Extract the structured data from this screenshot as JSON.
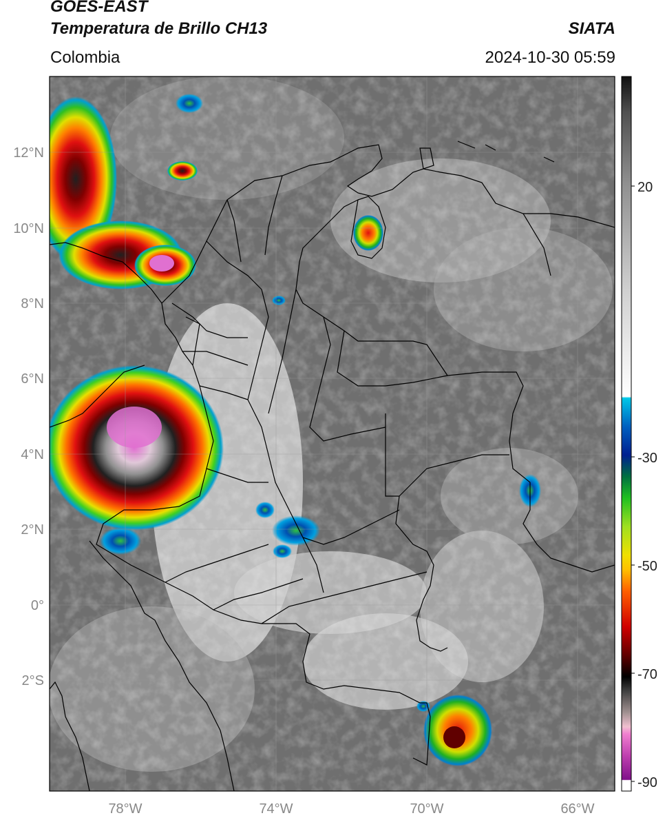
{
  "header": {
    "satellite": "GOES-EAST",
    "product": "Temperatura de Brillo CH13",
    "source": "SIATA",
    "region": "Colombia",
    "datetime": "2024-10-30 05:59"
  },
  "map": {
    "lat_labels": [
      "12°N",
      "10°N",
      "8°N",
      "6°N",
      "4°N",
      "2°N",
      "0°",
      "2°S"
    ],
    "lon_labels": [
      "78°W",
      "74°W",
      "70°W",
      "66°W"
    ],
    "lon_range": [
      -80,
      -65
    ],
    "lat_range": [
      -5,
      14
    ]
  },
  "colorbar": {
    "tick_labels": [
      "20",
      "-30",
      "-50",
      "-70",
      "-90"
    ],
    "stops": [
      "#ffffff",
      "#8b1a8b",
      "#e060c0",
      "#f0c0d8",
      "#a0a0a0",
      "#303030",
      "#000000",
      "#700000",
      "#d00000",
      "#ff6000",
      "#ffc000",
      "#e0e000",
      "#60e020",
      "#00b000",
      "#006040",
      "#0020a0",
      "#0060c0",
      "#00c8e0",
      "#ffffff",
      "#c8c8c8",
      "#808080",
      "#303030"
    ]
  }
}
